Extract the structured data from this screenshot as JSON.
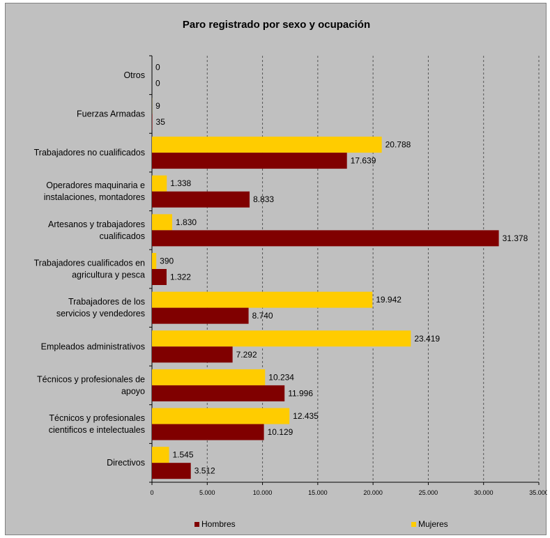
{
  "chart_data": {
    "type": "bar",
    "orientation": "horizontal",
    "title": "Paro registrado por sexo y ocupación",
    "categories": [
      "Otros",
      "Fuerzas Armadas",
      "Trabajadores no cualificados",
      "Operadores maquinaria e instalaciones, montadores",
      "Artesanos y trabajadores cualificados",
      "Trabajadores cualificados en agricultura y pesca",
      "Trabajadores de los servicios y vendedores",
      "Empleados administrativos",
      "Técnicos y profesionales de apoyo",
      "Técnicos y profesionales cientificos e intelectuales",
      "Directivos"
    ],
    "category_lines": [
      [
        "Otros"
      ],
      [
        "Fuerzas Armadas"
      ],
      [
        "Trabajadores no cualificados"
      ],
      [
        "Operadores maquinaria e",
        "instalaciones, montadores"
      ],
      [
        "Artesanos y trabajadores",
        "cualificados"
      ],
      [
        "Trabajadores cualificados en",
        "agricultura y pesca"
      ],
      [
        "Trabajadores de los",
        "servicios y vendedores"
      ],
      [
        "Empleados administrativos"
      ],
      [
        "Técnicos y profesionales de",
        "apoyo"
      ],
      [
        "Técnicos y profesionales",
        "cientificos e intelectuales"
      ],
      [
        "Directivos"
      ]
    ],
    "series": [
      {
        "name": "Mujeres",
        "color": "#ffcc00",
        "values": [
          0,
          9,
          20788,
          1338,
          1830,
          390,
          19942,
          23419,
          10234,
          12435,
          1545
        ],
        "labels": [
          "0",
          "9",
          "20.788",
          "1.338",
          "1.830",
          "390",
          "19.942",
          "23.419",
          "10.234",
          "12.435",
          "1.545"
        ]
      },
      {
        "name": "Hombres",
        "color": "#800000",
        "values": [
          0,
          35,
          17639,
          8833,
          31378,
          1322,
          8740,
          7292,
          11996,
          10129,
          3512
        ],
        "labels": [
          "0",
          "35",
          "17.639",
          "8.833",
          "31.378",
          "1.322",
          "8.740",
          "7.292",
          "11.996",
          "10.129",
          "3.512"
        ]
      }
    ],
    "xlim": [
      0,
      35000
    ],
    "xticks": [
      0,
      5000,
      10000,
      15000,
      20000,
      25000,
      30000,
      35000
    ],
    "xtick_labels": [
      "0",
      "5.000",
      "10.000",
      "15.000",
      "20.000",
      "25.000",
      "30.000",
      "35.000"
    ],
    "grid": "vertical dashed",
    "legend_position": "bottom",
    "background": "#c0c0c0"
  },
  "legend": {
    "hombres": "Hombres",
    "mujeres": "Mujeres"
  }
}
